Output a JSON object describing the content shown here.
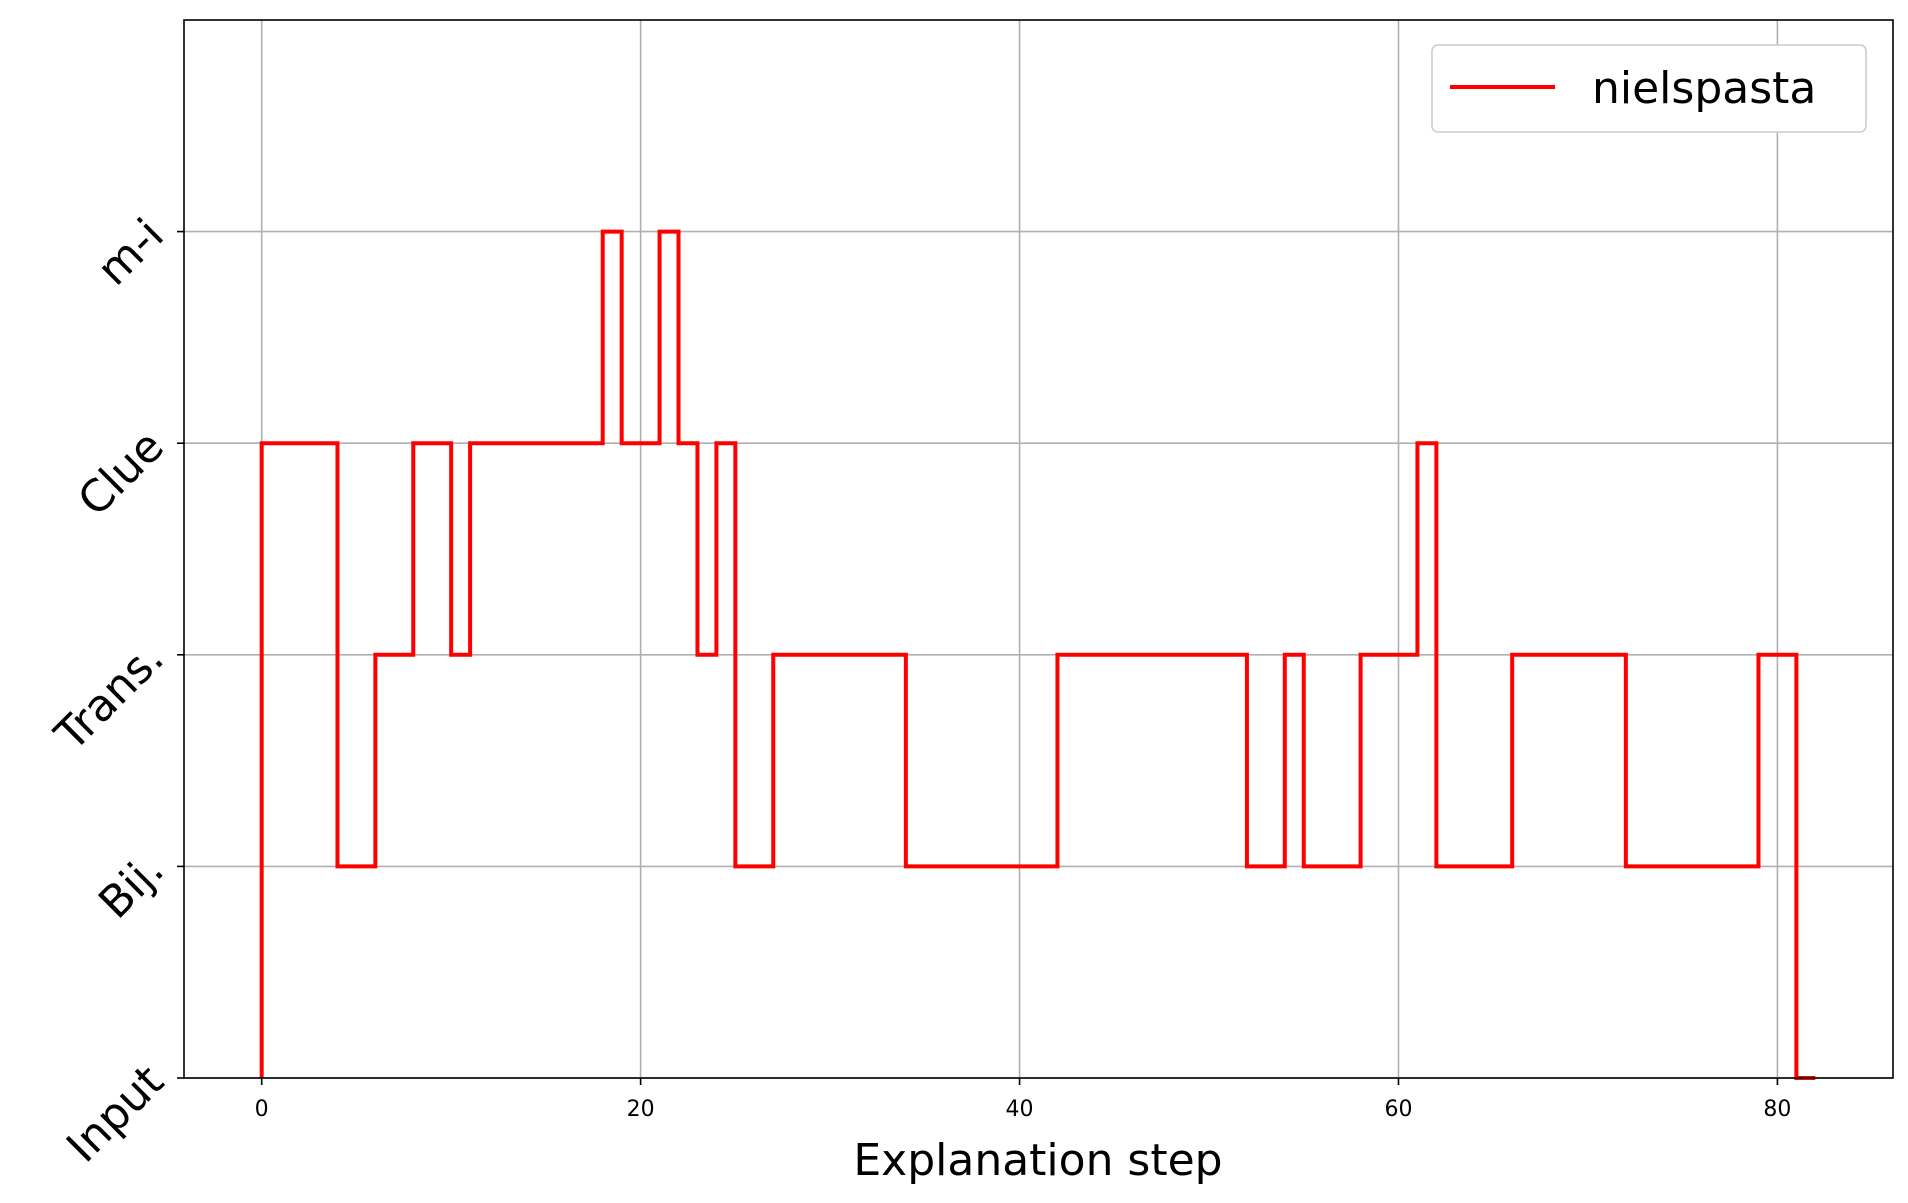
{
  "chart_data": {
    "type": "line",
    "step": "post",
    "title": "",
    "xlabel": "Explanation step",
    "ylabel": "",
    "xlim": [
      -4.1,
      86.1
    ],
    "ylim": [
      0,
      5
    ],
    "xticks": [
      0,
      20,
      40,
      60,
      80
    ],
    "yticks": [
      {
        "value": 0,
        "label": "Input"
      },
      {
        "value": 1,
        "label": "Bij."
      },
      {
        "value": 2,
        "label": "Trans."
      },
      {
        "value": 3,
        "label": "Clue"
      },
      {
        "value": 4,
        "label": "m-i"
      }
    ],
    "grid": true,
    "legend": {
      "location": "upper right"
    },
    "series": [
      {
        "name": "nielspasta",
        "color": "#ff0000",
        "points": [
          [
            0,
            0
          ],
          [
            0,
            3
          ],
          [
            4,
            1
          ],
          [
            6,
            2
          ],
          [
            8,
            3
          ],
          [
            10,
            2
          ],
          [
            11,
            3
          ],
          [
            18,
            4
          ],
          [
            19,
            3
          ],
          [
            21,
            4
          ],
          [
            22,
            3
          ],
          [
            23,
            2
          ],
          [
            24,
            3
          ],
          [
            25,
            1
          ],
          [
            27,
            2
          ],
          [
            34,
            1
          ],
          [
            42,
            2
          ],
          [
            52,
            1
          ],
          [
            54,
            2
          ],
          [
            55,
            1
          ],
          [
            58,
            2
          ],
          [
            61,
            3
          ],
          [
            62,
            1
          ],
          [
            66,
            2
          ],
          [
            72,
            1
          ],
          [
            79,
            2
          ],
          [
            81,
            0
          ],
          [
            82,
            0
          ]
        ]
      }
    ]
  }
}
